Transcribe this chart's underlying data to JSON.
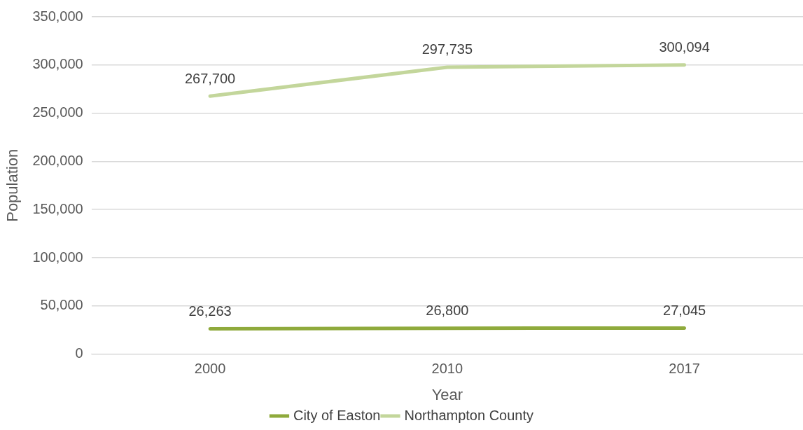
{
  "chart_data": {
    "type": "line",
    "xlabel": "Year",
    "ylabel": "Population",
    "categories": [
      "2000",
      "2010",
      "2017"
    ],
    "series": [
      {
        "name": "City of Easton",
        "color": "#8faa3c",
        "values": [
          26263,
          26800,
          27045
        ],
        "value_labels": [
          "26,263",
          "26,800",
          "27,045"
        ]
      },
      {
        "name": "Northampton County",
        "color": "#c3d69b",
        "values": [
          267700,
          297735,
          300094
        ],
        "value_labels": [
          "267,700",
          "297,735",
          "300,094"
        ]
      }
    ],
    "ylim": [
      0,
      350000
    ],
    "yticks": [
      {
        "value": 0,
        "label": "0"
      },
      {
        "value": 50000,
        "label": "50,000"
      },
      {
        "value": 100000,
        "label": "100,000"
      },
      {
        "value": 150000,
        "label": "150,000"
      },
      {
        "value": 200000,
        "label": "200,000"
      },
      {
        "value": 250000,
        "label": "250,000"
      },
      {
        "value": 300000,
        "label": "300,000"
      },
      {
        "value": 350000,
        "label": "350,000"
      }
    ],
    "grid": "y",
    "legend": "bottom",
    "marker": "none",
    "line_style": "solid"
  }
}
